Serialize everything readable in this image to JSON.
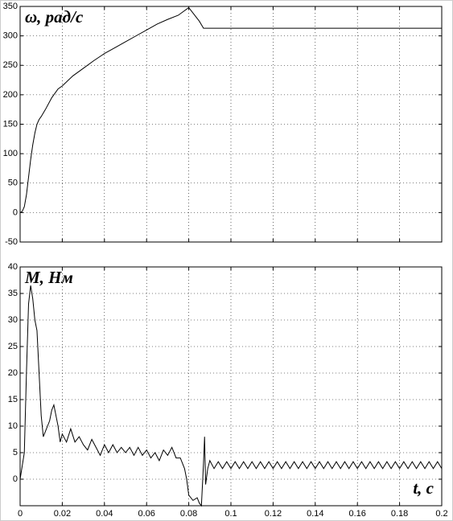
{
  "chart_data": [
    {
      "type": "line",
      "ylabel": "ω, рад/с",
      "xlim": [
        0,
        0.2
      ],
      "ylim": [
        -50,
        350
      ],
      "xticks": [
        0,
        0.02,
        0.04,
        0.06,
        0.08,
        0.1,
        0.12,
        0.14,
        0.16,
        0.18,
        0.2
      ],
      "x_tick_labels": false,
      "yticks": [
        -50,
        0,
        50,
        100,
        150,
        200,
        250,
        300,
        350
      ],
      "grid": true,
      "color": "#000000",
      "x": [
        0,
        0.001,
        0.002,
        0.003,
        0.004,
        0.005,
        0.006,
        0.007,
        0.008,
        0.009,
        0.01,
        0.012,
        0.015,
        0.018,
        0.02,
        0.025,
        0.03,
        0.035,
        0.04,
        0.045,
        0.05,
        0.055,
        0.06,
        0.065,
        0.07,
        0.075,
        0.08,
        0.085,
        0.087,
        0.1,
        0.15,
        0.2
      ],
      "values": [
        0,
        2,
        10,
        30,
        60,
        90,
        115,
        135,
        150,
        158,
        163,
        175,
        195,
        210,
        215,
        232,
        245,
        258,
        270,
        280,
        290,
        300,
        310,
        320,
        328,
        335,
        348,
        325,
        313,
        313,
        313,
        313
      ]
    },
    {
      "type": "line",
      "ylabel": "M, Нм",
      "xlabel": "t, c",
      "xlim": [
        0,
        0.2
      ],
      "ylim": [
        -5,
        40
      ],
      "xticks": [
        0,
        0.02,
        0.04,
        0.06,
        0.08,
        0.1,
        0.12,
        0.14,
        0.16,
        0.18,
        0.2
      ],
      "x_tick_labels": true,
      "yticks": [
        0,
        5,
        10,
        15,
        20,
        25,
        30,
        35,
        40
      ],
      "grid": true,
      "color": "#000000",
      "x": [
        0,
        0.002,
        0.003,
        0.004,
        0.005,
        0.006,
        0.007,
        0.008,
        0.009,
        0.01,
        0.011,
        0.012,
        0.013,
        0.014,
        0.015,
        0.016,
        0.017,
        0.018,
        0.019,
        0.02,
        0.022,
        0.024,
        0.026,
        0.028,
        0.03,
        0.032,
        0.034,
        0.036,
        0.038,
        0.04,
        0.042,
        0.044,
        0.046,
        0.048,
        0.05,
        0.052,
        0.054,
        0.056,
        0.058,
        0.06,
        0.062,
        0.064,
        0.066,
        0.068,
        0.07,
        0.072,
        0.074,
        0.076,
        0.078,
        0.079,
        0.08,
        0.082,
        0.084,
        0.085,
        0.086,
        0.087,
        0.0875,
        0.088,
        0.089,
        0.09,
        0.092,
        0.094,
        0.096,
        0.098,
        0.1,
        0.102,
        0.104,
        0.106,
        0.108,
        0.11,
        0.112,
        0.114,
        0.116,
        0.118,
        0.12,
        0.122,
        0.124,
        0.126,
        0.128,
        0.13,
        0.132,
        0.134,
        0.136,
        0.138,
        0.14,
        0.142,
        0.144,
        0.146,
        0.148,
        0.15,
        0.152,
        0.154,
        0.156,
        0.158,
        0.16,
        0.162,
        0.164,
        0.166,
        0.168,
        0.17,
        0.172,
        0.174,
        0.176,
        0.178,
        0.18,
        0.182,
        0.184,
        0.186,
        0.188,
        0.19,
        0.192,
        0.194,
        0.196,
        0.198,
        0.2
      ],
      "values": [
        0,
        5,
        20,
        33,
        36.5,
        34,
        30,
        28,
        20,
        12,
        8,
        9,
        10,
        11,
        13,
        14,
        12,
        10,
        7,
        8.5,
        7,
        9.5,
        7,
        8,
        6.5,
        5.5,
        7.5,
        6,
        4.5,
        6.5,
        5,
        6.5,
        5,
        6,
        5,
        6,
        4.5,
        6,
        4.5,
        5.5,
        4,
        5,
        3.5,
        5.5,
        4.5,
        6,
        4,
        4,
        2,
        0,
        -3,
        -4,
        -3.5,
        -4.5,
        -5,
        3,
        8,
        -1,
        2,
        3.5,
        2,
        3.3,
        2,
        3.3,
        2,
        3.3,
        2,
        3.3,
        2,
        3.3,
        2,
        3.3,
        2,
        3.3,
        2,
        3.3,
        2,
        3.3,
        2,
        3.3,
        2,
        3.3,
        2,
        3.3,
        2,
        3.3,
        2,
        3.3,
        2,
        3.3,
        2,
        3.3,
        2,
        3.3,
        2,
        3.3,
        2,
        3.3,
        2,
        3.3,
        2,
        3.3,
        2,
        3.3,
        2,
        3.3,
        2,
        3.3,
        2,
        3.3,
        2,
        3.3,
        2,
        3.3,
        2
      ]
    }
  ]
}
